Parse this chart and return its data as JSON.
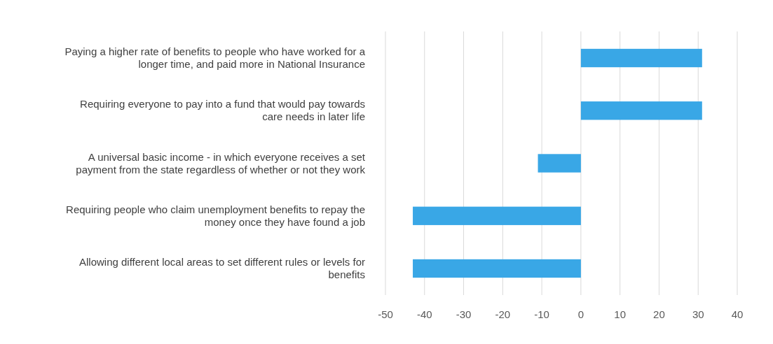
{
  "chart_data": {
    "type": "bar",
    "orientation": "horizontal",
    "categories": [
      "Paying a higher rate of benefits to people who have worked for a longer time, and paid more in National Insurance",
      "Requiring everyone to pay into a fund that would pay towards care needs in later life",
      "A universal basic income - in which everyone receives a set payment from the state regardless of whether or not they work",
      "Requiring people who claim unemployment benefits to repay the money once they have found a job",
      "Allowing different local areas to set different rules or levels for benefits"
    ],
    "values": [
      31,
      31,
      -11,
      -43,
      -43
    ],
    "color": "#39a7e6",
    "xlim": [
      -50,
      40
    ],
    "xticks": [
      -50,
      -40,
      -30,
      -20,
      -10,
      0,
      10,
      20,
      30,
      40
    ],
    "grid": "x"
  }
}
